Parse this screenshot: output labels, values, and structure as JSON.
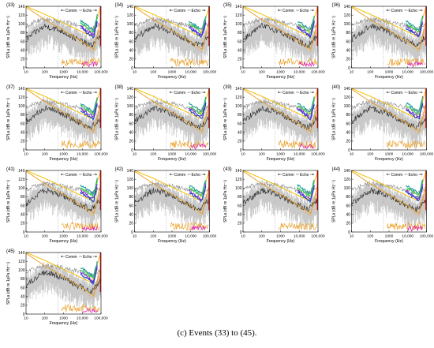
{
  "caption": "(c) Events (33) to (45).",
  "colors": {
    "curve_a": "#f0c000",
    "curve_b": "#e89a1a",
    "grey_band": "#c9c9c9",
    "grey_line_dark": "#222222",
    "grey_line_light": "#8c8c8c",
    "teal": "#1a9a9a",
    "green": "#2ecc40",
    "purple": "#8a2be2",
    "blue": "#1f3fbf",
    "magenta": "#e020c0",
    "red": "#e00000",
    "legend_line": "#333333"
  },
  "chart_data": {
    "type": "line",
    "x_scale": "log",
    "xlim": [
      10,
      100000
    ],
    "ylim": [
      0,
      140
    ],
    "grid": false,
    "legend_position": "top-right",
    "xlabel": "Frequency (Hz)",
    "ylabel": "SPLa (dB re 1μPa Hz⁻¹)",
    "x_ticks": [
      "10",
      "100",
      "1000",
      "10,000",
      "100,000"
    ],
    "y_ticks": [
      "0",
      "20",
      "40",
      "60",
      "80",
      "100",
      "120",
      "140"
    ],
    "legend": [
      "Comm",
      "Echo"
    ],
    "panels": [
      {
        "label": "(33)"
      },
      {
        "label": "(34)"
      },
      {
        "label": "(35)"
      },
      {
        "label": "(36)"
      },
      {
        "label": "(37)"
      },
      {
        "label": "(38)"
      },
      {
        "label": "(39)"
      },
      {
        "label": "(40)"
      },
      {
        "label": "(41)"
      },
      {
        "label": "(42)"
      },
      {
        "label": "(43)"
      },
      {
        "label": "(44)"
      },
      {
        "label": "(45)"
      }
    ],
    "series_template": {
      "yellow_curve": {
        "x": [
          10,
          100,
          1000,
          10000,
          30000,
          100000
        ],
        "y": [
          140,
          122,
          102,
          82,
          72,
          140
        ]
      },
      "orange_curve": {
        "x": [
          10,
          100,
          1000,
          10000,
          40000,
          100000
        ],
        "y": [
          138,
          110,
          85,
          60,
          42,
          110
        ]
      },
      "dark_grey": {
        "x": [
          10,
          30,
          100,
          300,
          1000,
          3000,
          10000,
          30000,
          100000
        ],
        "y": [
          65,
          80,
          95,
          90,
          82,
          70,
          60,
          50,
          75
        ]
      },
      "light_grey": {
        "x": [
          10,
          30,
          100,
          300,
          1000,
          3000,
          10000,
          30000,
          100000
        ],
        "y": [
          95,
          105,
          110,
          108,
          105,
          100,
          95,
          88,
          100
        ]
      }
    }
  }
}
